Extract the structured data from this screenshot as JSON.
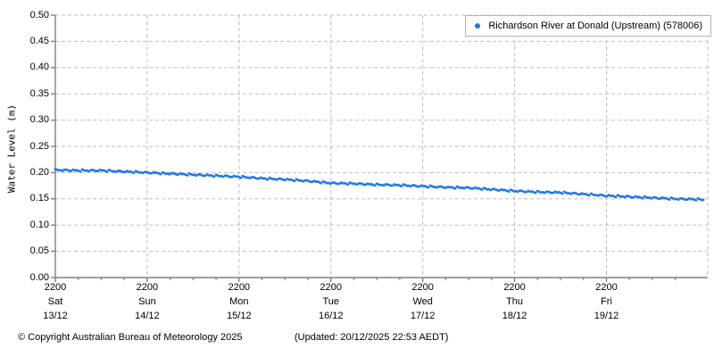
{
  "colors": {
    "series_blue": "#1f77e8",
    "grid": "#bdbdbd",
    "axis": "#7f7f7f",
    "legend_border": "#b5b5b5",
    "text": "#000000"
  },
  "chart_data": {
    "type": "scatter",
    "title": "",
    "xlabel": "",
    "ylabel": "Water Level (m)",
    "ylim": [
      0.0,
      0.5
    ],
    "ytick_step": 0.05,
    "ytick_labels": [
      "0.50",
      "0.45",
      "0.40",
      "0.35",
      "0.30",
      "0.25",
      "0.20",
      "0.15",
      "0.10",
      "0.05",
      "0.00"
    ],
    "grid": true,
    "legend_position": "top-right-inside",
    "x_ticks": [
      {
        "time": "2200",
        "day": "Sat",
        "date": "13/12"
      },
      {
        "time": "2200",
        "day": "Sun",
        "date": "14/12"
      },
      {
        "time": "2200",
        "day": "Mon",
        "date": "15/12"
      },
      {
        "time": "2200",
        "day": "Tue",
        "date": "16/12"
      },
      {
        "time": "2200",
        "day": "Wed",
        "date": "17/12"
      },
      {
        "time": "2200",
        "day": "Thu",
        "date": "18/12"
      },
      {
        "time": "2200",
        "day": "Fri",
        "date": "19/12"
      }
    ],
    "x_minor_tick_interval_days": 0.25,
    "x_span_days": 7.103,
    "series": [
      {
        "name": "Richardson River at Donald (Upstream) (578006)",
        "color": "#1f77e8",
        "marker": "dot",
        "points_units": [
          "days_since_first_tick",
          "metres"
        ],
        "points": [
          [
            0.0,
            0.205
          ],
          [
            0.25,
            0.204
          ],
          [
            0.5,
            0.204
          ],
          [
            0.75,
            0.202
          ],
          [
            1.0,
            0.2
          ],
          [
            1.25,
            0.198
          ],
          [
            1.5,
            0.196
          ],
          [
            1.75,
            0.194
          ],
          [
            2.0,
            0.192
          ],
          [
            2.25,
            0.189
          ],
          [
            2.5,
            0.187
          ],
          [
            2.75,
            0.184
          ],
          [
            3.0,
            0.18
          ],
          [
            3.25,
            0.179
          ],
          [
            3.5,
            0.177
          ],
          [
            3.75,
            0.176
          ],
          [
            4.0,
            0.174
          ],
          [
            4.25,
            0.172
          ],
          [
            4.5,
            0.171
          ],
          [
            4.75,
            0.168
          ],
          [
            5.0,
            0.165
          ],
          [
            5.25,
            0.163
          ],
          [
            5.5,
            0.162
          ],
          [
            5.75,
            0.159
          ],
          [
            6.0,
            0.156
          ],
          [
            6.25,
            0.154
          ],
          [
            6.5,
            0.152
          ],
          [
            6.75,
            0.15
          ],
          [
            7.0,
            0.149
          ],
          [
            7.07,
            0.148
          ]
        ]
      }
    ]
  },
  "legend": {
    "label": "Richardson River at Donald (Upstream) (578006)"
  },
  "footer": {
    "copyright": "© Copyright Australian Bureau of Meteorology 2025",
    "updated": "(Updated: 20/12/2025 22:53 AEDT)"
  }
}
